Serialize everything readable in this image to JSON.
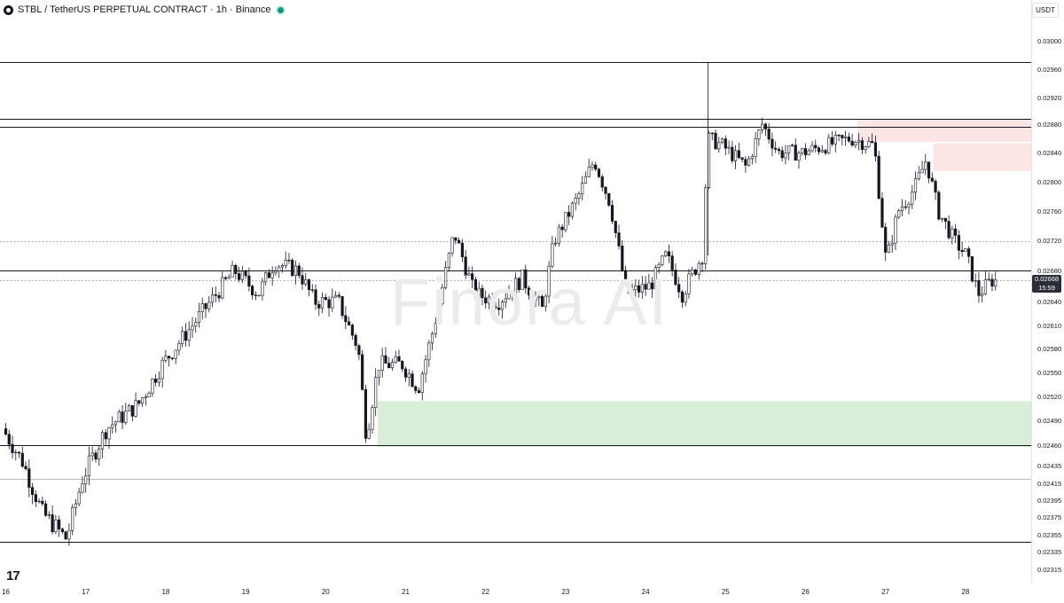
{
  "header": {
    "symbol": "STBL / TetherUS PERPETUAL CONTRACT · 1h · Binance",
    "currency": "USDT",
    "watermark": "Finora AI"
  },
  "last_price_tag": {
    "price": "0.02668",
    "countdown": "15:59"
  },
  "chart_data": {
    "type": "candlestick",
    "y_axis": {
      "range": [
        0.023,
        0.0302
      ],
      "ticks": [
        "0.03000",
        "0.02960",
        "0.02920",
        "0.02880",
        "0.02840",
        "0.02800",
        "0.02760",
        "0.02720",
        "0.02680",
        "0.02640",
        "0.02610",
        "0.02580",
        "0.02550",
        "0.02520",
        "0.02490",
        "0.02460",
        "0.02435",
        "0.02415",
        "0.02395",
        "0.02375",
        "0.02355",
        "0.02335",
        "0.02315"
      ]
    },
    "x_axis": {
      "range": [
        16.0,
        28.6
      ],
      "ticks": [
        {
          "label": "16",
          "x": 16
        },
        {
          "label": "17",
          "x": 17
        },
        {
          "label": "18",
          "x": 18
        },
        {
          "label": "19",
          "x": 19
        },
        {
          "label": "20",
          "x": 20
        },
        {
          "label": "21",
          "x": 21
        },
        {
          "label": "22",
          "x": 22
        },
        {
          "label": "23",
          "x": 23
        },
        {
          "label": "24",
          "x": 24
        },
        {
          "label": "25",
          "x": 25
        },
        {
          "label": "26",
          "x": 26
        },
        {
          "label": "27",
          "x": 27
        },
        {
          "label": "28",
          "x": 28
        }
      ]
    },
    "price_path": [
      [
        16.0,
        0.0248
      ],
      [
        16.25,
        0.0244
      ],
      [
        16.5,
        0.0238
      ],
      [
        16.8,
        0.0235
      ],
      [
        17.0,
        0.0242
      ],
      [
        17.3,
        0.0248
      ],
      [
        17.7,
        0.0251
      ],
      [
        18.0,
        0.0256
      ],
      [
        18.3,
        0.026
      ],
      [
        18.6,
        0.0264
      ],
      [
        18.9,
        0.0268
      ],
      [
        19.2,
        0.0265
      ],
      [
        19.4,
        0.0269
      ],
      [
        19.7,
        0.0268
      ],
      [
        19.9,
        0.0264
      ],
      [
        20.2,
        0.0264
      ],
      [
        20.45,
        0.0258
      ],
      [
        20.55,
        0.0247
      ],
      [
        20.7,
        0.0256
      ],
      [
        21.0,
        0.0256
      ],
      [
        21.2,
        0.0253
      ],
      [
        21.4,
        0.0261
      ],
      [
        21.65,
        0.0273
      ],
      [
        21.9,
        0.0265
      ],
      [
        22.2,
        0.0264
      ],
      [
        22.5,
        0.0267
      ],
      [
        22.75,
        0.0263
      ],
      [
        22.9,
        0.0272
      ],
      [
        23.2,
        0.0278
      ],
      [
        23.4,
        0.0283
      ],
      [
        23.6,
        0.0277
      ],
      [
        23.8,
        0.0265
      ],
      [
        24.1,
        0.0266
      ],
      [
        24.3,
        0.027
      ],
      [
        24.5,
        0.0265
      ],
      [
        24.75,
        0.027
      ],
      [
        24.82,
        0.0286
      ],
      [
        25.0,
        0.0285
      ],
      [
        25.3,
        0.0282
      ],
      [
        25.5,
        0.0288
      ],
      [
        25.7,
        0.0284
      ],
      [
        26.0,
        0.0284
      ],
      [
        26.3,
        0.0285
      ],
      [
        26.6,
        0.0286
      ],
      [
        26.9,
        0.0285
      ],
      [
        27.05,
        0.0269
      ],
      [
        27.2,
        0.0276
      ],
      [
        27.4,
        0.0279
      ],
      [
        27.55,
        0.0283
      ],
      [
        27.7,
        0.0276
      ],
      [
        27.9,
        0.0272
      ],
      [
        28.05,
        0.027
      ],
      [
        28.2,
        0.0265
      ],
      [
        28.38,
        0.02668
      ]
    ],
    "horizontal_lines": [
      {
        "price": 0.0297,
        "style": "solid"
      },
      {
        "price": 0.02888,
        "style": "solid"
      },
      {
        "price": 0.02876,
        "style": "solid"
      },
      {
        "price": 0.02719,
        "style": "dotted"
      },
      {
        "price": 0.0268,
        "style": "solid"
      },
      {
        "price": 0.02668,
        "style": "dotted"
      },
      {
        "price": 0.0246,
        "style": "solid"
      },
      {
        "price": 0.0242,
        "style": "solid-thin"
      },
      {
        "price": 0.02347,
        "style": "solid"
      }
    ],
    "zones": [
      {
        "kind": "demand",
        "color": "#d9eed9",
        "x_start": 20.65,
        "price_top": 0.02514,
        "price_bottom": 0.02458
      },
      {
        "kind": "supply",
        "color": "#fce5e5",
        "x_start": 26.65,
        "price_top": 0.02888,
        "price_bottom": 0.02855
      },
      {
        "kind": "supply",
        "color": "#fce5e5",
        "x_start": 27.6,
        "price_top": 0.02853,
        "price_bottom": 0.02815
      }
    ]
  }
}
